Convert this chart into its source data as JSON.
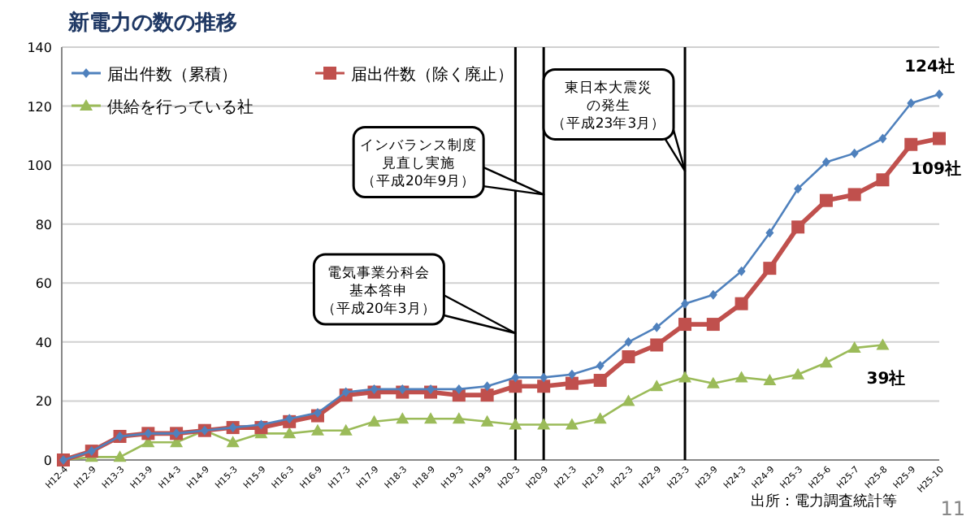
{
  "chart_data": {
    "type": "line",
    "title": "新電力の数の推移",
    "categories": [
      "H12-4",
      "H12-9",
      "H13-3",
      "H13-9",
      "H14-3",
      "H14-9",
      "H15-3",
      "H15-9",
      "H16-3",
      "H16-9",
      "H17-3",
      "H17-9",
      "H18-3",
      "H18-9",
      "H19-3",
      "H19-9",
      "H20-3",
      "H20-9",
      "H21-3",
      "H21-9",
      "H22-3",
      "H22-9",
      "H23-3",
      "H23-9",
      "H24-3",
      "H24-9",
      "H25-3",
      "H25-6",
      "H25-7",
      "H25-8",
      "H25-9",
      "H25-10"
    ],
    "series": [
      {
        "name": "届出件数（累積）",
        "color": "#4f81bd",
        "marker": "diamond",
        "values": [
          0,
          3,
          8,
          9,
          9,
          10,
          11,
          12,
          14,
          16,
          23,
          24,
          24,
          24,
          24,
          25,
          28,
          28,
          29,
          32,
          40,
          45,
          53,
          56,
          64,
          77,
          92,
          101,
          104,
          109,
          121,
          124
        ]
      },
      {
        "name": "届出件数（除く廃止）",
        "color": "#c0504d",
        "marker": "square",
        "values": [
          0,
          3,
          8,
          9,
          9,
          10,
          11,
          11,
          13,
          15,
          22,
          23,
          23,
          23,
          22,
          22,
          25,
          25,
          26,
          27,
          35,
          39,
          46,
          46,
          53,
          65,
          79,
          88,
          90,
          95,
          107,
          109
        ]
      },
      {
        "name": "供給を行っている社",
        "color": "#9bbb59",
        "marker": "triangle",
        "values": [
          0,
          1,
          1,
          6,
          6,
          10,
          6,
          9,
          9,
          10,
          10,
          13,
          14,
          14,
          14,
          13,
          12,
          12,
          12,
          14,
          20,
          25,
          28,
          26,
          28,
          27,
          29,
          33,
          38,
          39,
          null,
          null
        ]
      }
    ],
    "ylim": [
      0,
      140
    ],
    "yticks": [
      0,
      20,
      40,
      60,
      80,
      100,
      120,
      140
    ],
    "grid": "y",
    "legend": "top left",
    "ref_lines": [
      {
        "axis": "x",
        "value": "H20-3",
        "color": "#000000"
      },
      {
        "axis": "x",
        "value": "H20-9",
        "color": "#000000"
      },
      {
        "axis": "x",
        "value": "H23-3",
        "color": "#000000"
      }
    ],
    "annotations": [
      {
        "text": "電気事業分科会基本答申（平成20年3月）",
        "x": "H20-3",
        "y": 43
      },
      {
        "text": "インバランス制度見直し実施（平成20年9月）",
        "x": "H20-9",
        "y": 90
      },
      {
        "text": "東日本大震災の発生（平成23年3月）",
        "x": "H23-3",
        "y": 98
      },
      {
        "text": "124社",
        "x": "H25-10",
        "y": 124
      },
      {
        "text": "109社",
        "x": "H25-10",
        "y": 109
      },
      {
        "text": "39社",
        "x": "H25-8",
        "y": 39
      },
      "出所：電力調査統計等",
      "11"
    ]
  }
}
